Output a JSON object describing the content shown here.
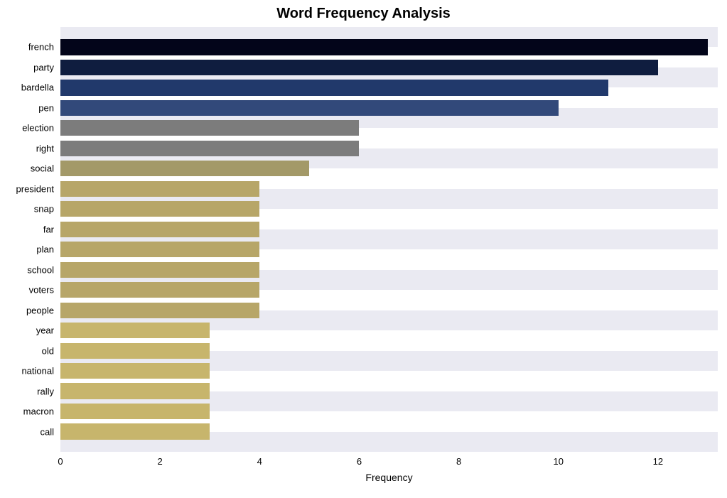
{
  "chart": {
    "type": "bar-horizontal",
    "title": "Word Frequency Analysis",
    "title_fontsize": 20,
    "title_fontweight": "bold",
    "background_color": "#ffffff",
    "plot_band_colors": [
      "#eaeaf2",
      "#ffffff"
    ],
    "xlabel": "Frequency",
    "xlabel_fontsize": 14,
    "ylabel_fontsize": 13,
    "xtick_fontsize": 13,
    "x_min": 0,
    "x_max": 13.2,
    "x_ticks": [
      0,
      2,
      4,
      6,
      8,
      10,
      12
    ],
    "bar_height_ratio": 0.78,
    "categories": [
      "french",
      "party",
      "bardella",
      "pen",
      "election",
      "right",
      "social",
      "president",
      "snap",
      "far",
      "plan",
      "school",
      "voters",
      "people",
      "year",
      "old",
      "national",
      "rally",
      "macron",
      "call"
    ],
    "values": [
      13,
      12,
      11,
      10,
      6,
      6,
      5,
      4,
      4,
      4,
      4,
      4,
      4,
      4,
      3,
      3,
      3,
      3,
      3,
      3
    ],
    "bar_colors": [
      "#03051a",
      "#0f1d3f",
      "#21396b",
      "#32497a",
      "#7c7c7c",
      "#7c7c7c",
      "#a39968",
      "#b7a668",
      "#b7a668",
      "#b7a668",
      "#b7a668",
      "#b7a668",
      "#b7a668",
      "#b7a668",
      "#c7b56c",
      "#c7b56c",
      "#c7b56c",
      "#c7b56c",
      "#c7b56c",
      "#c7b56c"
    ]
  }
}
